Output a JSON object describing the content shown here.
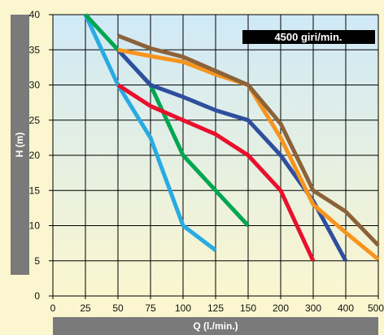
{
  "chart_data": {
    "type": "line",
    "title": "",
    "badge": "4500 giri/min.",
    "xlabel": "Q (l./min.)",
    "ylabel": "H (m)",
    "ylim": [
      0,
      40
    ],
    "y_ticks": [
      "0",
      "5",
      "10",
      "15",
      "20",
      "25",
      "30",
      "35",
      "40"
    ],
    "x_ticks": [
      "0",
      "25",
      "50",
      "75",
      "100",
      "125",
      "150",
      "200",
      "300",
      "400",
      "500"
    ],
    "grid": true,
    "colors": {
      "background_top": "#cfe9f7",
      "background_bottom": "#fbf6cf",
      "grid": "#000000",
      "axis_band": "#7a7a7a",
      "badge": "#000000"
    },
    "series": [
      {
        "color": "#29abe2",
        "x": [
          25,
          50,
          75,
          100,
          125
        ],
        "y": [
          40,
          30,
          22.5,
          10,
          6.5
        ]
      },
      {
        "color": "#00a651",
        "x": [
          25,
          50,
          75,
          100,
          125,
          150
        ],
        "y": [
          40,
          35,
          30,
          20,
          15,
          10
        ]
      },
      {
        "color": "#e8112d",
        "x": [
          50,
          75,
          100,
          125,
          150,
          200,
          300
        ],
        "y": [
          30,
          27,
          25,
          23,
          20,
          15,
          5
        ]
      },
      {
        "color": "#2e4f9e",
        "x": [
          50,
          75,
          100,
          125,
          150,
          200,
          300,
          400
        ],
        "y": [
          35,
          30,
          28.3,
          26.4,
          25,
          20,
          13.5,
          5
        ]
      },
      {
        "color": "#f7941d",
        "x": [
          50,
          75,
          100,
          125,
          150,
          200,
          300,
          400,
          500
        ],
        "y": [
          35,
          34.1,
          33.3,
          31.5,
          30,
          22.5,
          13,
          9,
          5.2
        ]
      },
      {
        "color": "#8c6239",
        "x": [
          50,
          75,
          100,
          125,
          150,
          200,
          300,
          400,
          500
        ],
        "y": [
          37,
          35.2,
          34,
          32,
          30,
          24.5,
          15,
          12,
          7.2
        ]
      }
    ]
  }
}
